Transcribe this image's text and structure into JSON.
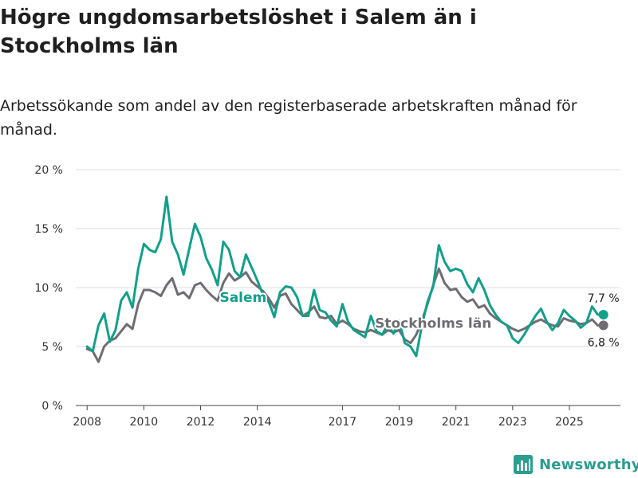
{
  "title": "Högre ungdomsarbetslöshet i Salem än i Stockholms län",
  "subtitle": "Arbetssökande som andel av den registerbaserade arbetskraften månad för månad.",
  "brand": {
    "name": "Newsworthy",
    "icon": "bar-chart-logo-icon",
    "color": "#2a9d8f"
  },
  "colors": {
    "salem": "#11a08b",
    "stockholm": "#6f6d72",
    "grid": "#dddddd",
    "axis": "#444444"
  },
  "chart_data": {
    "type": "line",
    "title": "Högre ungdomsarbetslöshet i Salem än i Stockholms län",
    "xlabel": "",
    "ylabel": "",
    "x_range": [
      2007.6,
      2026.8
    ],
    "ylim": [
      0,
      20
    ],
    "grid": true,
    "x_ticks": [
      {
        "value": 2008,
        "label": "2008"
      },
      {
        "value": 2010,
        "label": "2010"
      },
      {
        "value": 2012,
        "label": "2012"
      },
      {
        "value": 2014,
        "label": "2014"
      },
      {
        "value": 2017,
        "label": "2017"
      },
      {
        "value": 2019,
        "label": "2019"
      },
      {
        "value": 2021,
        "label": "2021"
      },
      {
        "value": 2023,
        "label": "2023"
      },
      {
        "value": 2025,
        "label": "2025"
      }
    ],
    "y_ticks": [
      {
        "value": 0,
        "label": "0 %"
      },
      {
        "value": 5,
        "label": "5 %"
      },
      {
        "value": 10,
        "label": "10 %"
      },
      {
        "value": 15,
        "label": "15 %"
      },
      {
        "value": 20,
        "label": "20 %"
      }
    ],
    "series": [
      {
        "name": "Salem",
        "label": "Salem",
        "color": "#11a08b",
        "label_pos": [
          2013.5,
          8.8
        ],
        "end_label": "7,7 %",
        "x": [
          2008.0,
          2008.2,
          2008.4,
          2008.6,
          2008.8,
          2009.0,
          2009.2,
          2009.4,
          2009.6,
          2009.8,
          2010.0,
          2010.2,
          2010.4,
          2010.6,
          2010.8,
          2011.0,
          2011.2,
          2011.4,
          2011.6,
          2011.8,
          2012.0,
          2012.2,
          2012.4,
          2012.6,
          2012.8,
          2013.0,
          2013.2,
          2013.4,
          2013.6,
          2013.8,
          2014.0,
          2014.2,
          2014.4,
          2014.6,
          2014.8,
          2015.0,
          2015.2,
          2015.4,
          2015.6,
          2015.8,
          2016.0,
          2016.2,
          2016.4,
          2016.6,
          2016.8,
          2017.0,
          2017.2,
          2017.4,
          2017.6,
          2017.8,
          2018.0,
          2018.2,
          2018.4,
          2018.6,
          2018.8,
          2019.0,
          2019.2,
          2019.4,
          2019.6,
          2019.8,
          2020.0,
          2020.2,
          2020.4,
          2020.6,
          2020.8,
          2021.0,
          2021.2,
          2021.4,
          2021.6,
          2021.8,
          2022.0,
          2022.2,
          2022.4,
          2022.6,
          2022.8,
          2023.0,
          2023.2,
          2023.4,
          2023.6,
          2023.8,
          2024.0,
          2024.2,
          2024.4,
          2024.6,
          2024.8,
          2025.0,
          2025.2,
          2025.4,
          2025.6,
          2025.8,
          2026.0,
          2026.2
        ],
        "y": [
          5.0,
          4.6,
          6.8,
          7.8,
          5.4,
          6.4,
          8.9,
          9.6,
          8.3,
          11.6,
          13.7,
          13.2,
          13.0,
          14.1,
          17.7,
          13.9,
          12.8,
          11.1,
          13.3,
          15.4,
          14.3,
          12.5,
          11.5,
          10.2,
          13.9,
          13.2,
          11.4,
          10.9,
          12.8,
          11.7,
          10.6,
          9.4,
          8.8,
          7.5,
          9.6,
          10.1,
          10.0,
          9.2,
          7.6,
          7.6,
          9.8,
          8.1,
          7.9,
          7.2,
          6.7,
          8.6,
          7.1,
          6.4,
          6.1,
          5.8,
          7.6,
          6.3,
          6.0,
          6.9,
          6.1,
          7.2,
          5.3,
          5.0,
          4.2,
          6.8,
          8.8,
          10.1,
          13.6,
          12.2,
          11.4,
          11.6,
          11.4,
          10.3,
          9.6,
          10.8,
          9.8,
          8.5,
          7.7,
          7.1,
          6.8,
          5.7,
          5.3,
          6.0,
          6.8,
          7.6,
          8.2,
          7.1,
          6.4,
          7.0,
          8.1,
          7.6,
          7.2,
          6.6,
          7.0,
          8.4,
          7.7,
          7.7
        ]
      },
      {
        "name": "Stockholms län",
        "label": "Stockholms län",
        "color": "#6f6d72",
        "label_pos": [
          2020.2,
          6.6
        ],
        "end_label": "6,8 %",
        "x": [
          2008.0,
          2008.2,
          2008.4,
          2008.6,
          2008.8,
          2009.0,
          2009.2,
          2009.4,
          2009.6,
          2009.8,
          2010.0,
          2010.2,
          2010.4,
          2010.6,
          2010.8,
          2011.0,
          2011.2,
          2011.4,
          2011.6,
          2011.8,
          2012.0,
          2012.2,
          2012.4,
          2012.6,
          2012.8,
          2013.0,
          2013.2,
          2013.4,
          2013.6,
          2013.8,
          2014.0,
          2014.2,
          2014.4,
          2014.6,
          2014.8,
          2015.0,
          2015.2,
          2015.4,
          2015.6,
          2015.8,
          2016.0,
          2016.2,
          2016.4,
          2016.6,
          2016.8,
          2017.0,
          2017.2,
          2017.4,
          2017.6,
          2017.8,
          2018.0,
          2018.2,
          2018.4,
          2018.6,
          2018.8,
          2019.0,
          2019.2,
          2019.4,
          2019.6,
          2019.8,
          2020.0,
          2020.2,
          2020.4,
          2020.6,
          2020.8,
          2021.0,
          2021.2,
          2021.4,
          2021.6,
          2021.8,
          2022.0,
          2022.2,
          2022.4,
          2022.6,
          2022.8,
          2023.0,
          2023.2,
          2023.4,
          2023.6,
          2023.8,
          2024.0,
          2024.2,
          2024.4,
          2024.6,
          2024.8,
          2025.0,
          2025.2,
          2025.4,
          2025.6,
          2025.8,
          2026.0,
          2026.2
        ],
        "y": [
          4.8,
          4.6,
          3.7,
          5.0,
          5.5,
          5.7,
          6.3,
          6.9,
          6.5,
          8.6,
          9.8,
          9.8,
          9.6,
          9.3,
          10.2,
          10.8,
          9.4,
          9.6,
          9.1,
          10.2,
          10.4,
          9.8,
          9.3,
          8.9,
          10.4,
          11.2,
          10.6,
          10.9,
          11.3,
          10.5,
          10.1,
          9.7,
          9.1,
          8.3,
          9.3,
          9.5,
          8.6,
          8.1,
          7.6,
          7.9,
          8.4,
          7.5,
          7.4,
          7.6,
          6.9,
          7.2,
          6.9,
          6.5,
          6.3,
          6.2,
          6.4,
          6.2,
          6.0,
          6.4,
          6.2,
          6.4,
          5.6,
          5.3,
          6.0,
          7.2,
          8.6,
          10.2,
          11.6,
          10.4,
          9.8,
          9.9,
          9.2,
          8.8,
          9.0,
          8.3,
          8.5,
          7.8,
          7.4,
          7.1,
          6.8,
          6.5,
          6.3,
          6.5,
          6.8,
          7.1,
          7.3,
          7.0,
          6.8,
          6.7,
          7.4,
          7.2,
          7.1,
          6.9,
          7.0,
          7.3,
          6.8,
          6.8
        ]
      }
    ]
  }
}
